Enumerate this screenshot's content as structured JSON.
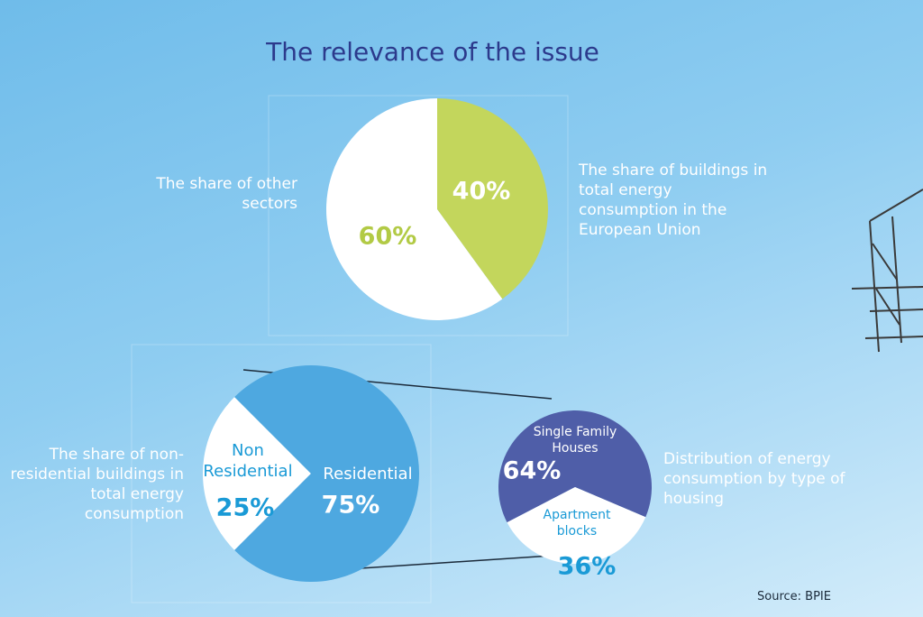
{
  "title": "The relevance of the issue",
  "source": "Source: BPIE",
  "chart_data": [
    {
      "type": "pie",
      "categories": [
        "The share of buildings in total energy consumption in the European Union",
        "The share of other sectors"
      ],
      "values": [
        40,
        60
      ],
      "value_labels": [
        "40%",
        "60%"
      ],
      "colors": [
        "#c3d65c",
        "#ffffff"
      ]
    },
    {
      "type": "pie",
      "annotation": "The share of non-residential buildings in total energy consumption",
      "categories": [
        "Non Residential",
        "Residential"
      ],
      "values": [
        25,
        75
      ],
      "value_labels": [
        "25%",
        "75%"
      ],
      "colors": [
        "#ffffff",
        "#4ea8e0"
      ]
    },
    {
      "type": "pie",
      "annotation": "Distribution of energy consumption by type of housing",
      "categories": [
        "Single Family Houses",
        "Apartment blocks"
      ],
      "values": [
        64,
        36
      ],
      "value_labels": [
        "64%",
        "36%"
      ],
      "colors": [
        "#4f5ea8",
        "#ffffff"
      ]
    }
  ]
}
